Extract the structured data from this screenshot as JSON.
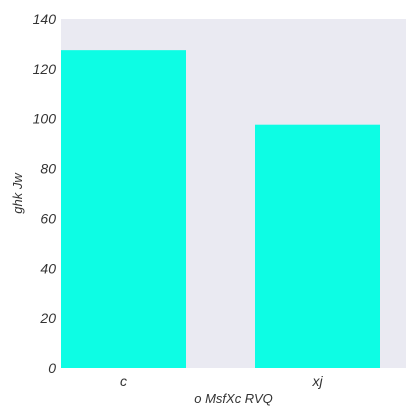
{
  "chart_data": {
    "type": "bar",
    "categories": [
      "c",
      "xj"
    ],
    "values": [
      127.5,
      97.6
    ],
    "xlabel": "o  MsfXc RVQ",
    "ylabel": "ghk Jw",
    "ylim": [
      0,
      140
    ],
    "yticks": [
      0,
      20,
      40,
      60,
      80,
      100,
      120,
      140
    ],
    "grid": false,
    "colors": {
      "bar": "#0dfde4",
      "plot_background": "#eaeaf2",
      "text": "#333333"
    }
  }
}
